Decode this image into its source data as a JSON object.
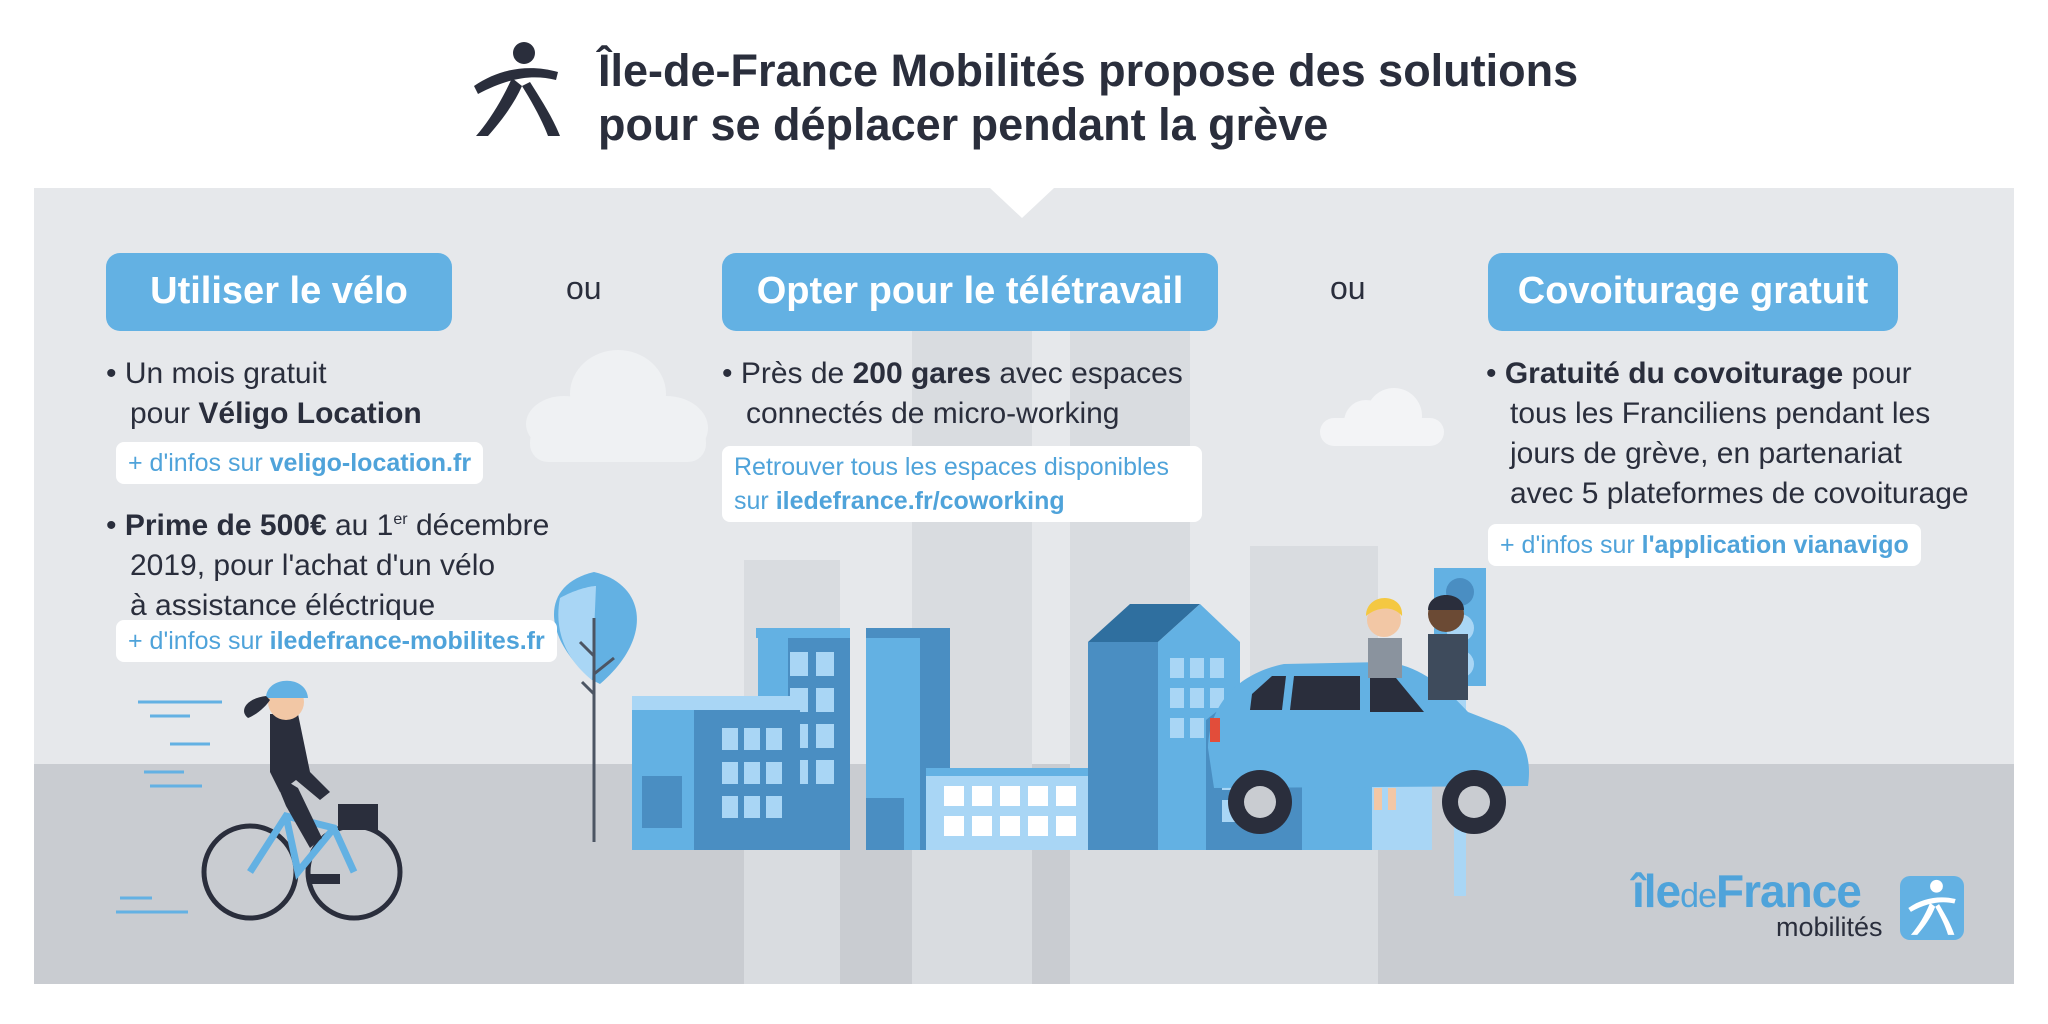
{
  "header": {
    "title_line1": "Île-de-France Mobilités propose des solutions",
    "title_line2": "pour se déplacer pendant la grève"
  },
  "separator": "ou",
  "columns": {
    "velo": {
      "heading": "Utiliser le vélo",
      "b1_line1": "Un mois gratuit",
      "b1_line2_prefix": "pour ",
      "b1_line2_bold": "Véligo Location",
      "link1_prefix": "+ d'infos sur ",
      "link1_bold": "veligo-location.fr",
      "b2_bold": "Prime de 500€",
      "b2_text1": " au 1",
      "b2_sup": "er",
      "b2_text2": " décembre",
      "b2_line2": "2019, pour l'achat d'un vélo",
      "b2_line3": "à assistance éléctrique",
      "link2_prefix": "+ d'infos sur ",
      "link2_bold": "iledefrance-mobilites.fr"
    },
    "teletravail": {
      "heading": "Opter pour le télétravail",
      "b1_prefix": "Près de ",
      "b1_bold": "200 gares",
      "b1_suffix": " avec espaces",
      "b1_line2": "connectés de micro-working",
      "link_line1": "Retrouver tous les espaces disponibles",
      "link_line2_prefix": "sur ",
      "link_line2_bold": "iledefrance.fr/coworking"
    },
    "covoiturage": {
      "heading": "Covoiturage gratuit",
      "b1_bold": "Gratuité du covoiturage",
      "b1_suffix": " pour",
      "b1_line2": "tous les Franciliens pendant les",
      "b1_line3": "jours de grève, en partenariat",
      "b1_line4": "avec 5 plateformes de covoiturage",
      "link_prefix": "+ d'infos sur ",
      "link_bold": "l'application vianavigo"
    }
  },
  "brand": {
    "name_ile": "île",
    "name_de": "de",
    "name_france": "France",
    "name_sub": "mobilités"
  },
  "colors": {
    "accent": "#63b1e3",
    "link": "#4fa3da",
    "text": "#2a2e3c",
    "panel": "#e6e8eb",
    "ground": "#c9ccd1",
    "building_dark": "#4a8ec2",
    "building_light": "#a9d6f5"
  },
  "icons": {
    "header_logo": "walking-person-icon",
    "brand_mark": "walking-person-icon"
  }
}
